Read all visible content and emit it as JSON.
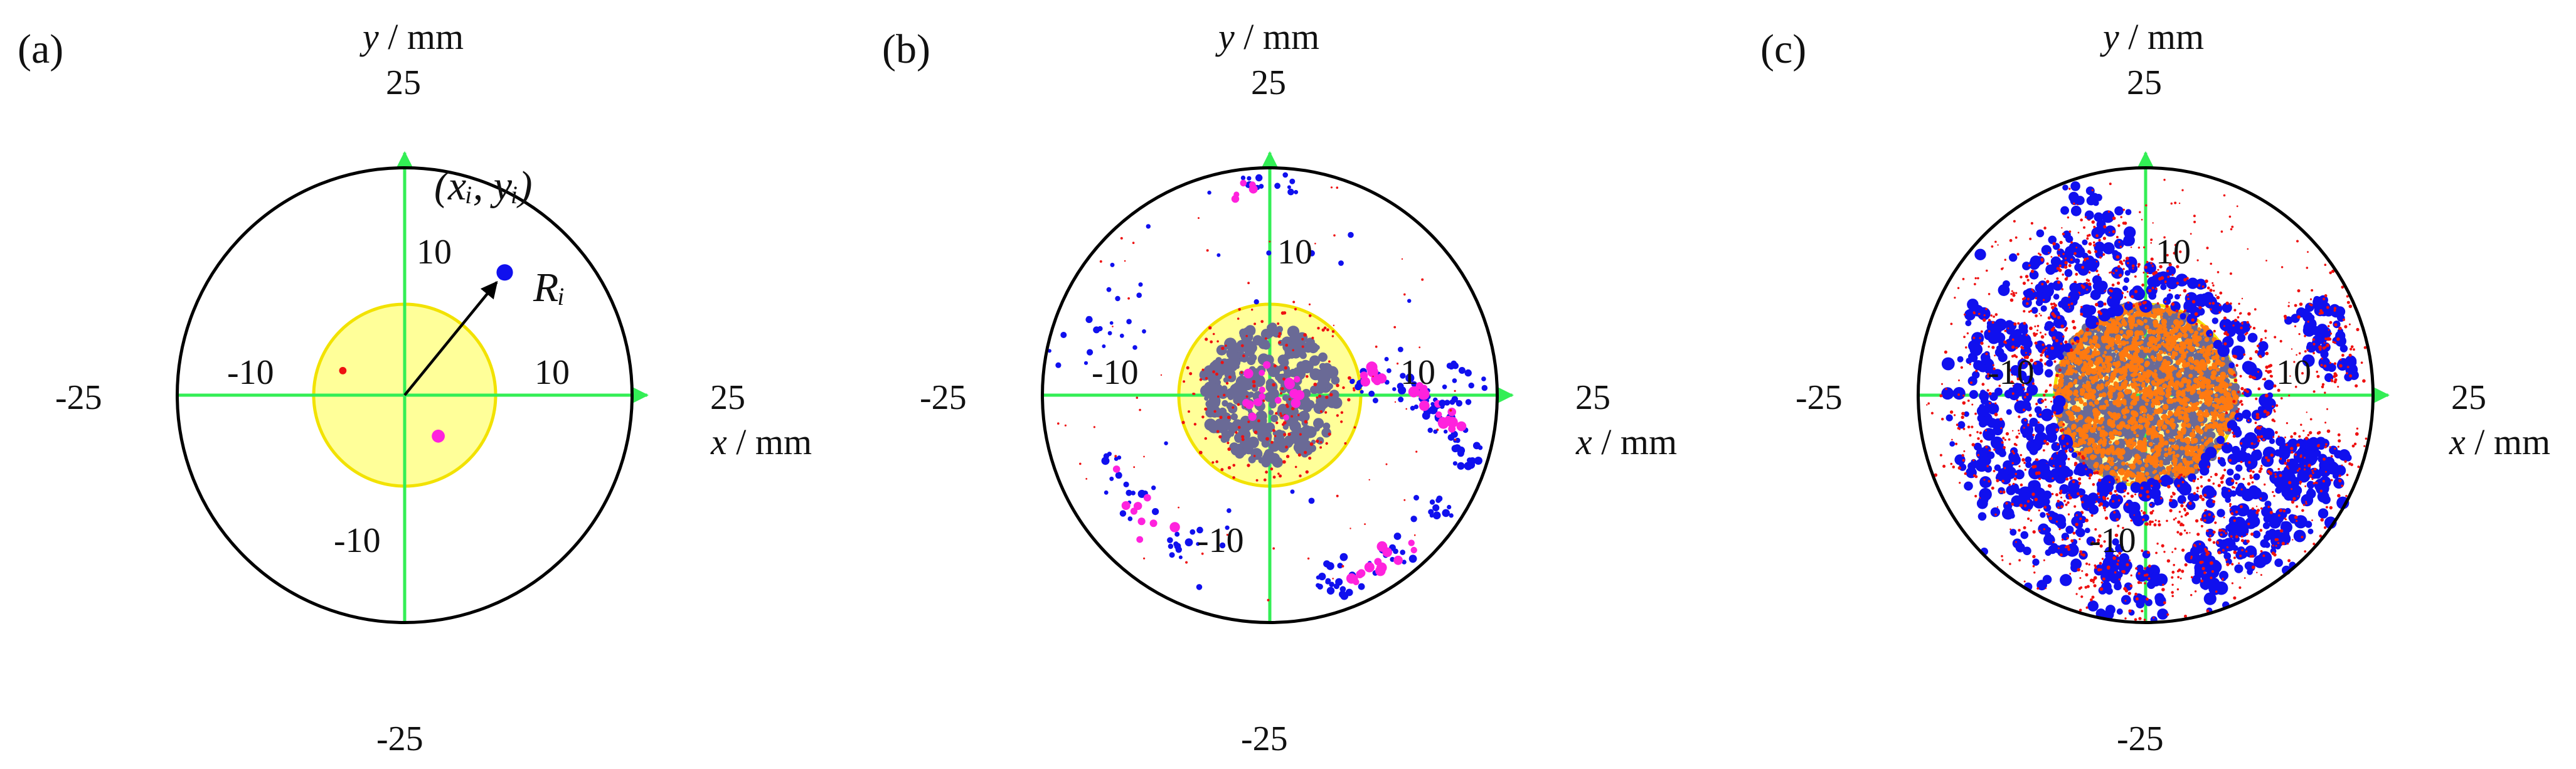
{
  "colors": {
    "circle": "#000000",
    "axis": "#33ee55",
    "region_fill": "#ffff99",
    "region_edge": "#f2e200",
    "blue": "#1010ee",
    "magenta": "#ff22dd",
    "red": "#ee1111",
    "slate": "#6a6a96",
    "orange": "#ff7a10"
  },
  "chart_data": [
    {
      "type": "scatter",
      "panel_label": "(a)",
      "xlabel_var": "x",
      "xlabel_unit": " / mm",
      "ylabel_var": "y",
      "ylabel_unit": " / mm",
      "xlim": [
        -25,
        25
      ],
      "ylim": [
        -25,
        25
      ],
      "boundary_radius": 25,
      "region_radius": 10,
      "outer_ticks": {
        "left": "-25",
        "right": "25",
        "top": "25",
        "bottom": "-25"
      },
      "inner_ticks": {
        "left": "-10",
        "right": "10",
        "top": "10",
        "bottom": "-10"
      },
      "annotation": {
        "text": "(xᵢ, yᵢ)",
        "radius_label": "Rᵢ",
        "target": [
          11,
          13.5
        ]
      },
      "series": [
        {
          "color": "blue",
          "points": [
            [
              11,
              13.5,
              1.0
            ]
          ]
        },
        {
          "color": "red",
          "points": [
            [
              -6.8,
              2.7,
              0.45
            ]
          ]
        },
        {
          "color": "magenta",
          "points": [
            [
              3.7,
              -4.5,
              0.8
            ]
          ]
        }
      ]
    },
    {
      "type": "scatter",
      "panel_label": "(b)",
      "xlabel_var": "x",
      "xlabel_unit": " / mm",
      "ylabel_var": "y",
      "ylabel_unit": " / mm",
      "xlim": [
        -25,
        25
      ],
      "ylim": [
        -25,
        25
      ],
      "boundary_radius": 25,
      "region_radius": 10,
      "outer_ticks": {
        "left": "-25",
        "right": "25",
        "top": "25",
        "bottom": "-25"
      },
      "inner_ticks": {
        "left": "-10",
        "right": "10",
        "top": "10",
        "bottom": "-10"
      },
      "clusters": [
        {
          "color": "slate",
          "shape": "disk",
          "r_max": 7.5,
          "count": 380,
          "size": [
            0.25,
            0.7
          ]
        },
        {
          "color": "red",
          "shape": "disk",
          "r_max": 10,
          "count": 160,
          "size": [
            0.12,
            0.2
          ]
        },
        {
          "color": "magenta",
          "shape": "disk",
          "r_max": 3.5,
          "count": 18,
          "size": [
            0.3,
            0.6
          ]
        },
        {
          "color": "blue",
          "shape": "arc",
          "center": [
            10,
            -10
          ],
          "radius": 12,
          "angles": [
            95,
            10
          ],
          "spread": 1.0,
          "count": 70,
          "size": [
            0.2,
            0.5
          ]
        },
        {
          "color": "magenta",
          "shape": "arc",
          "center": [
            10,
            -10
          ],
          "radius": 12,
          "angles": [
            90,
            30
          ],
          "spread": 0.6,
          "count": 22,
          "size": [
            0.35,
            0.65
          ]
        },
        {
          "color": "blue",
          "shape": "arc",
          "center": [
            0,
            0
          ],
          "radius": 22,
          "angles": [
            -30,
            -80
          ],
          "spread": 1.0,
          "count": 45,
          "size": [
            0.2,
            0.45
          ]
        },
        {
          "color": "magenta",
          "shape": "arc",
          "center": [
            0,
            0
          ],
          "radius": 22,
          "angles": [
            -40,
            -70
          ],
          "spread": 0.7,
          "count": 14,
          "size": [
            0.35,
            0.6
          ]
        },
        {
          "color": "blue",
          "shape": "arc",
          "center": [
            0,
            0
          ],
          "radius": 19,
          "angles": [
            200,
            245
          ],
          "spread": 1.3,
          "count": 30,
          "size": [
            0.2,
            0.45
          ]
        },
        {
          "color": "magenta",
          "shape": "arc",
          "center": [
            0,
            0
          ],
          "radius": 19,
          "angles": [
            205,
            235
          ],
          "spread": 0.8,
          "count": 10,
          "size": [
            0.35,
            0.6
          ]
        },
        {
          "color": "blue",
          "shape": "arc",
          "center": [
            0,
            0
          ],
          "radius": 23,
          "angles": [
            98,
            82
          ],
          "spread": 0.6,
          "count": 16,
          "size": [
            0.2,
            0.4
          ]
        },
        {
          "color": "magenta",
          "shape": "arc",
          "center": [
            0,
            0
          ],
          "radius": 23,
          "angles": [
            100,
            92
          ],
          "spread": 0.5,
          "count": 5,
          "size": [
            0.3,
            0.5
          ]
        },
        {
          "color": "blue",
          "shape": "arc",
          "center": [
            0,
            0
          ],
          "radius": 20,
          "angles": [
            180,
            150
          ],
          "spread": 2.0,
          "count": 14,
          "size": [
            0.2,
            0.4
          ]
        },
        {
          "color": "blue",
          "shape": "arc",
          "center": [
            0,
            0
          ],
          "radius": 21,
          "angles": [
            10,
            -5
          ],
          "spread": 1.0,
          "count": 16,
          "size": [
            0.2,
            0.4
          ]
        },
        {
          "color": "red",
          "shape": "ring",
          "r_min": 10,
          "r_max": 24,
          "count": 60,
          "size": [
            0.08,
            0.14
          ]
        },
        {
          "color": "blue",
          "shape": "ring",
          "r_min": 10,
          "r_max": 24,
          "count": 25,
          "size": [
            0.2,
            0.35
          ]
        }
      ]
    },
    {
      "type": "scatter",
      "panel_label": "(c)",
      "xlabel_var": "x",
      "xlabel_unit": " / mm",
      "ylabel_var": "y",
      "ylabel_unit": " / mm",
      "xlim": [
        -25,
        25
      ],
      "ylim": [
        -25,
        25
      ],
      "boundary_radius": 25,
      "region_radius": 10,
      "outer_ticks": {
        "left": "-25",
        "right": "25",
        "top": "25",
        "bottom": "-25"
      },
      "inner_ticks": {
        "left": "-10",
        "right": "10",
        "top": "10",
        "bottom": "-10"
      },
      "clusters": [
        {
          "color": "slate",
          "shape": "disk",
          "r_max": 10,
          "count": 1300,
          "size": [
            0.25,
            0.55
          ]
        },
        {
          "color": "orange",
          "shape": "disk",
          "r_max": 10,
          "count": 1400,
          "size": [
            0.15,
            0.35
          ]
        },
        {
          "color": "blue",
          "shape": "ring",
          "r_min": 9.5,
          "r_max": 14,
          "count": 260,
          "size": [
            0.3,
            0.75
          ]
        },
        {
          "color": "red",
          "shape": "ring",
          "r_min": 9.5,
          "r_max": 15,
          "count": 450,
          "size": [
            0.1,
            0.2
          ]
        },
        {
          "color": "blue",
          "shape": "arc",
          "center": [
            0,
            0
          ],
          "radius": 19,
          "angles": [
            -15,
            -75
          ],
          "spread": 2.8,
          "count": 230,
          "size": [
            0.3,
            0.75
          ]
        },
        {
          "color": "red",
          "shape": "arc",
          "center": [
            0,
            0
          ],
          "radius": 19,
          "angles": [
            -10,
            -80
          ],
          "spread": 3.2,
          "count": 220,
          "size": [
            0.1,
            0.2
          ]
        },
        {
          "color": "blue",
          "shape": "arc",
          "center": [
            0,
            0
          ],
          "radius": 17.5,
          "angles": [
            250,
            150
          ],
          "spread": 2.5,
          "count": 220,
          "size": [
            0.3,
            0.75
          ]
        },
        {
          "color": "red",
          "shape": "arc",
          "center": [
            0,
            0
          ],
          "radius": 17.5,
          "angles": [
            255,
            145
          ],
          "spread": 2.8,
          "count": 200,
          "size": [
            0.1,
            0.2
          ]
        },
        {
          "color": "blue",
          "shape": "arc",
          "center": [
            0,
            0
          ],
          "radius": 17,
          "angles": [
            145,
            95
          ],
          "spread": 2.0,
          "count": 90,
          "size": [
            0.3,
            0.7
          ]
        },
        {
          "color": "red",
          "shape": "arc",
          "center": [
            0,
            0
          ],
          "radius": 17,
          "angles": [
            145,
            95
          ],
          "spread": 2.5,
          "count": 120,
          "size": [
            0.1,
            0.2
          ]
        },
        {
          "color": "blue",
          "shape": "arc",
          "center": [
            0,
            0
          ],
          "radius": 21,
          "angles": [
            30,
            5
          ],
          "spread": 1.5,
          "count": 60,
          "size": [
            0.3,
            0.7
          ]
        },
        {
          "color": "red",
          "shape": "arc",
          "center": [
            0,
            0
          ],
          "radius": 21,
          "angles": [
            35,
            0
          ],
          "spread": 2.0,
          "count": 80,
          "size": [
            0.1,
            0.2
          ]
        },
        {
          "color": "blue",
          "shape": "arc",
          "center": [
            0,
            0
          ],
          "radius": 22.5,
          "angles": [
            112,
            103
          ],
          "spread": 0.8,
          "count": 14,
          "size": [
            0.3,
            0.6
          ]
        },
        {
          "color": "blue",
          "shape": "arc",
          "center": [
            0,
            0
          ],
          "radius": 21,
          "angles": [
            275,
            255
          ],
          "spread": 2.0,
          "count": 60,
          "size": [
            0.3,
            0.7
          ]
        },
        {
          "color": "red",
          "shape": "arc",
          "center": [
            0,
            0
          ],
          "radius": 21,
          "angles": [
            280,
            250
          ],
          "spread": 2.5,
          "count": 70,
          "size": [
            0.1,
            0.2
          ]
        },
        {
          "color": "red",
          "shape": "ring",
          "r_min": 13,
          "r_max": 24.5,
          "count": 250,
          "size": [
            0.08,
            0.15
          ]
        }
      ]
    }
  ]
}
